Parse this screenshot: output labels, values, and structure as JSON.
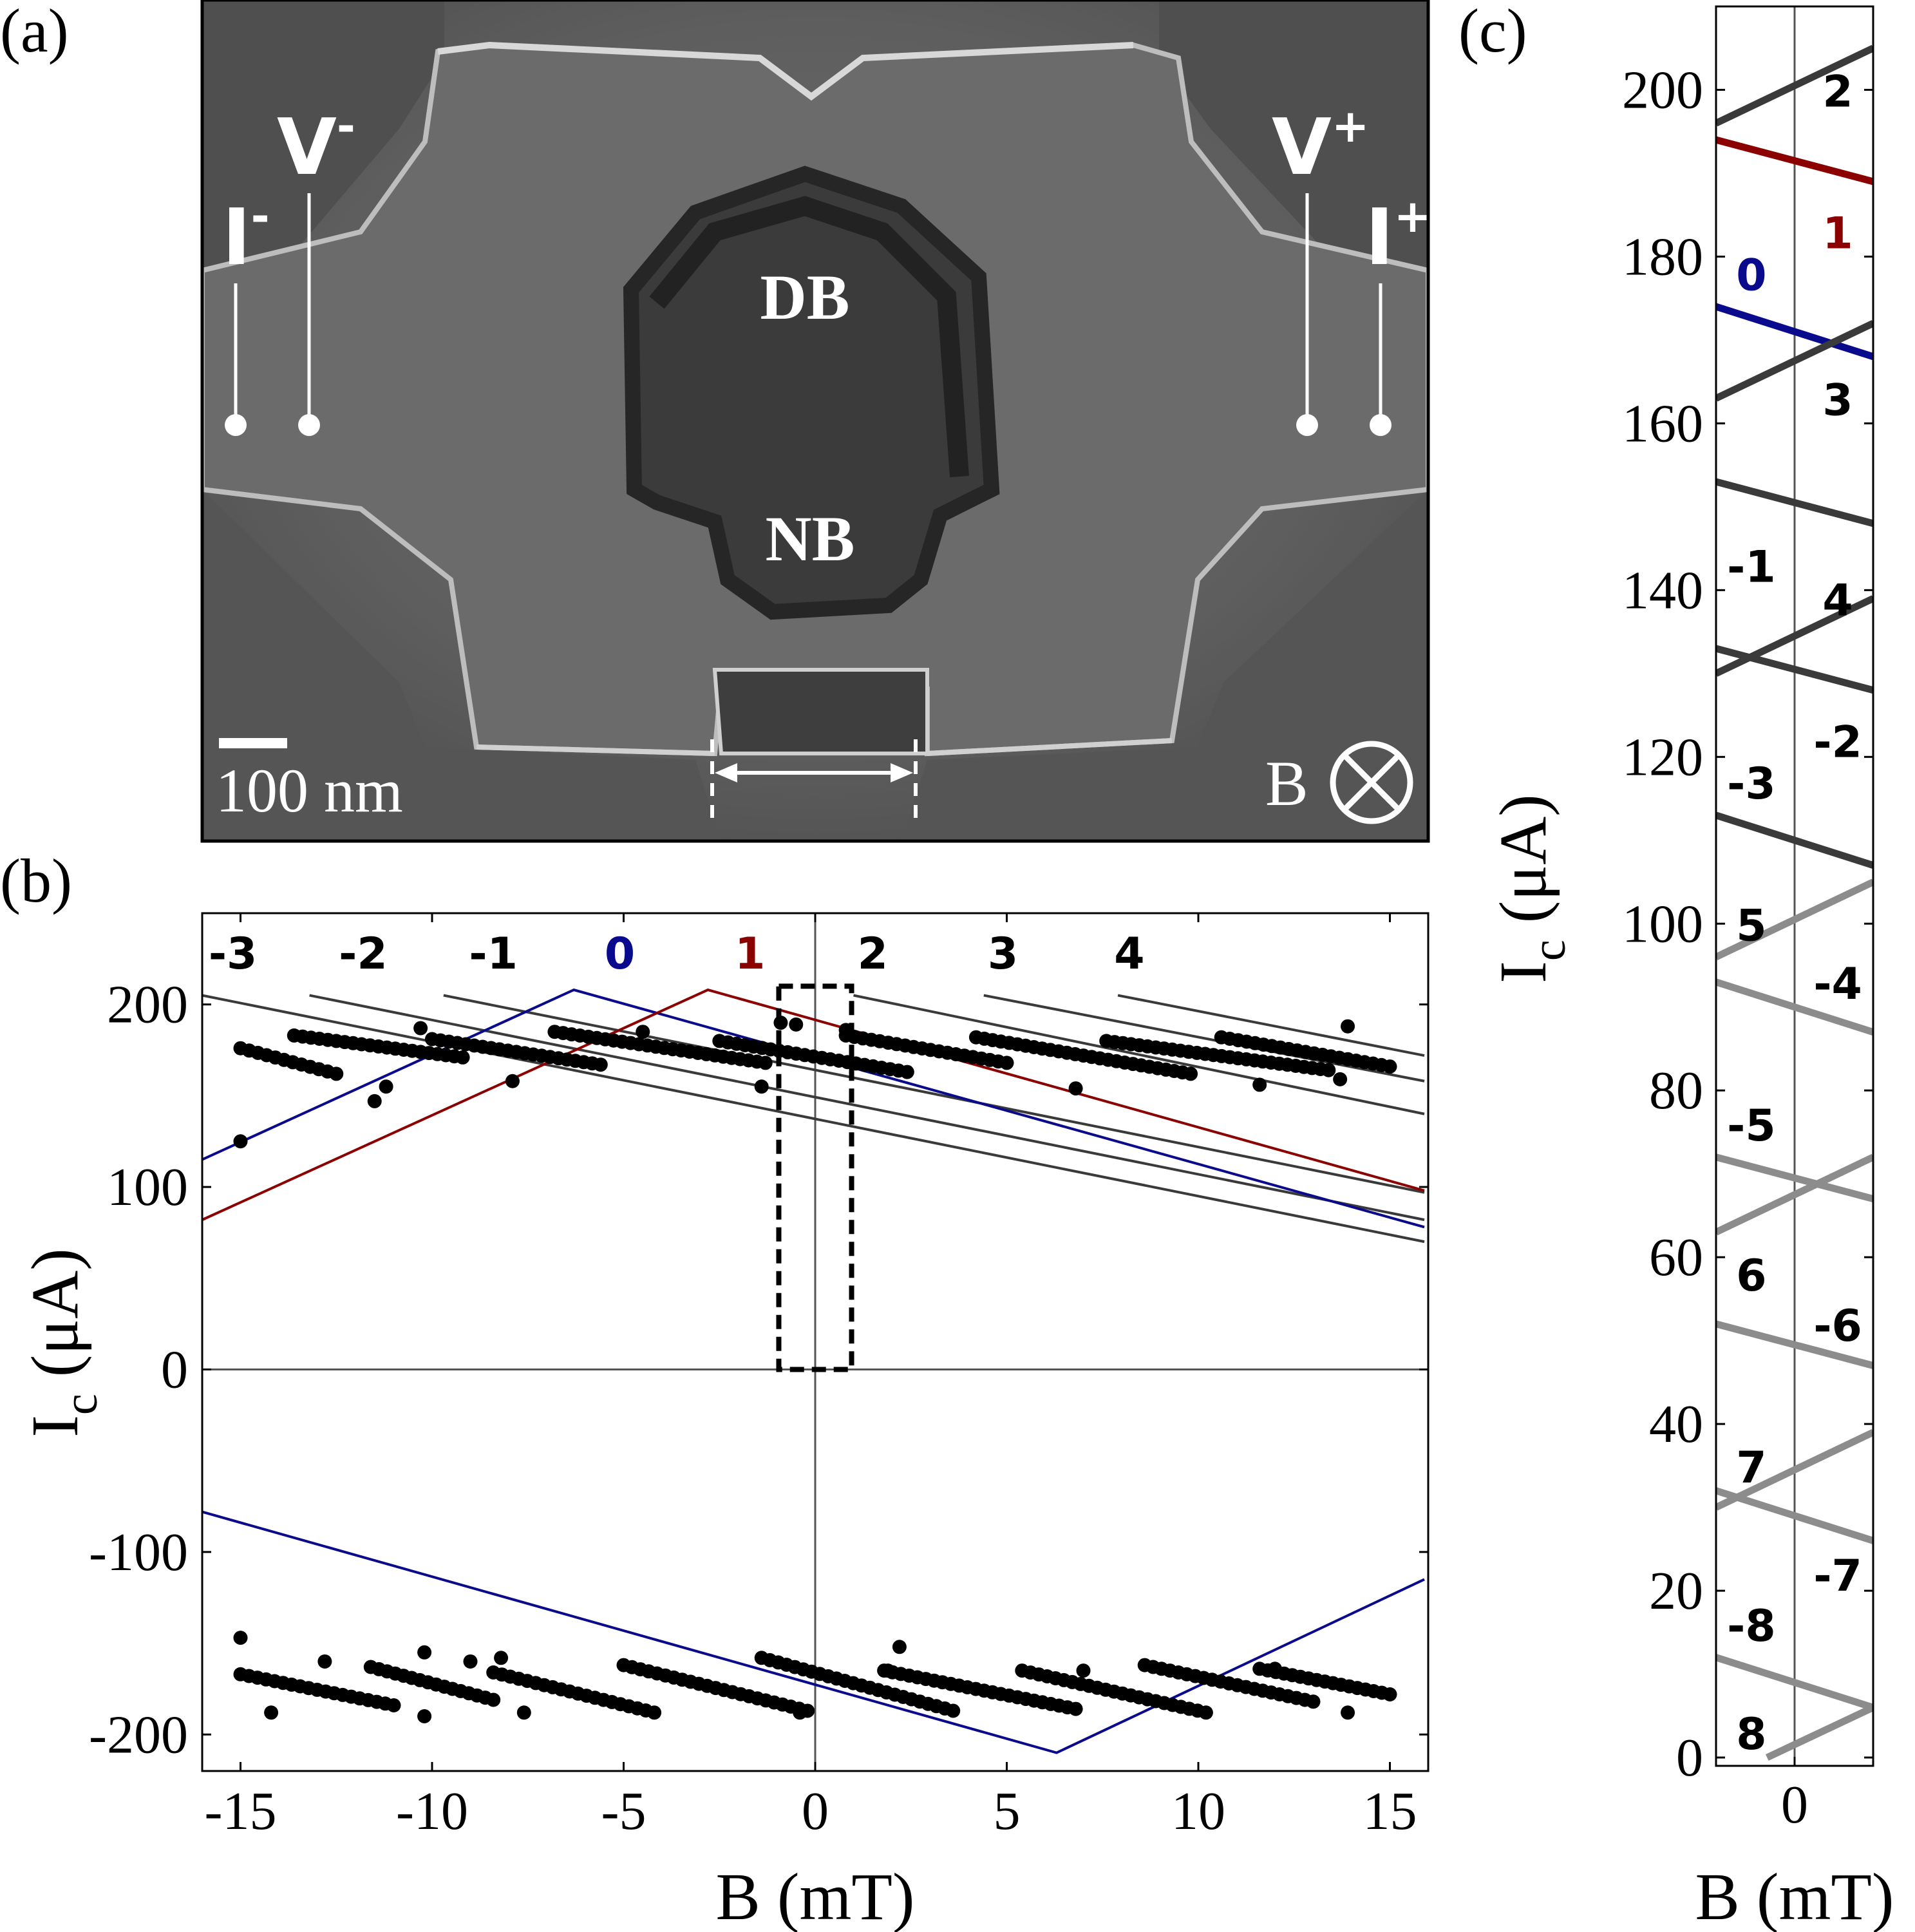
{
  "colors": {
    "black": "#000000",
    "dark_gray": "#3a3a3a",
    "light_gray": "#8c8c8c",
    "blue": "#0a0a8c",
    "red": "#8b0000"
  },
  "panel_a": {
    "label": "(a)",
    "v_minus": "V",
    "v_minus_sup": "-",
    "i_minus": "I",
    "i_minus_sup": "-",
    "v_plus": "V",
    "v_plus_sup": "+",
    "i_plus": "I",
    "i_plus_sup": "+",
    "db": "DB",
    "nb": "NB",
    "scale_bar": "100 nm",
    "field": "B",
    "field_icon": "circle-cross-icon"
  },
  "panel_b": {
    "label": "(b)",
    "xlabel": "B (mT)",
    "ylabel_main": "I",
    "ylabel_sub": "c",
    "ylabel_unit": " (μA)",
    "xticks": [
      "-15",
      "-10",
      "-5",
      "0",
      "5",
      "10",
      "15"
    ],
    "yticks": [
      "200",
      "100",
      "0",
      "-100",
      "-200"
    ]
  },
  "panel_c": {
    "label": "(c)",
    "xlabel": "B (mT)",
    "ylabel_main": "I",
    "ylabel_sub": "c",
    "ylabel_unit": " (μA)",
    "xticks": [
      "0"
    ],
    "yticks": [
      "200",
      "180",
      "160",
      "140",
      "120",
      "100",
      "80",
      "60",
      "40",
      "20",
      "0"
    ]
  },
  "chart_data": [
    {
      "type": "scatter",
      "panel": "b",
      "xlabel": "B (mT)",
      "ylabel": "Ic (μA)",
      "xlim": [
        -16,
        16
      ],
      "ylim": [
        -220,
        250
      ],
      "xticks": [
        -15,
        -10,
        -5,
        0,
        5,
        10,
        15
      ],
      "yticks": [
        -200,
        -100,
        0,
        100,
        200
      ],
      "fit_lines": [
        {
          "n": "-3",
          "color": "dark_gray",
          "x": [
            -16,
            15.9
          ],
          "y": [
            205,
            70
          ]
        },
        {
          "n": "-2",
          "color": "dark_gray",
          "x": [
            -13.2,
            15.9
          ],
          "y": [
            205,
            82
          ]
        },
        {
          "n": "-1",
          "color": "dark_gray",
          "x": [
            -9.7,
            15.9
          ],
          "y": [
            205,
            97
          ]
        },
        {
          "n": "0",
          "color": "blue",
          "x": [
            -16,
            -6.3,
            15.9
          ],
          "y": [
            115,
            208,
            78
          ]
        },
        {
          "n": "1",
          "color": "red",
          "x": [
            -16,
            -2.8,
            15.9
          ],
          "y": [
            82,
            208,
            98
          ]
        },
        {
          "n": "2",
          "color": "dark_gray",
          "x": [
            1.0,
            15.9
          ],
          "y": [
            205,
            140
          ]
        },
        {
          "n": "3",
          "color": "dark_gray",
          "x": [
            4.4,
            15.9
          ],
          "y": [
            205,
            158
          ]
        },
        {
          "n": "4",
          "color": "dark_gray",
          "x": [
            7.9,
            15.9
          ],
          "y": [
            205,
            172
          ]
        },
        {
          "n": "0",
          "color": "blue",
          "x": [
            -16,
            6.3,
            15.9
          ],
          "y": [
            -78,
            -210,
            -115
          ]
        }
      ],
      "branch_labels": [
        {
          "text": "-3",
          "x": -15.2,
          "color": "black"
        },
        {
          "text": "-2",
          "x": -11.8,
          "color": "black"
        },
        {
          "text": "-1",
          "x": -8.4,
          "color": "black"
        },
        {
          "text": "0",
          "x": -5.1,
          "color": "blue"
        },
        {
          "text": "1",
          "x": -1.7,
          "color": "red"
        },
        {
          "text": "2",
          "x": 1.5,
          "color": "black"
        },
        {
          "text": "3",
          "x": 4.9,
          "color": "black"
        },
        {
          "text": "4",
          "x": 8.2,
          "color": "black"
        }
      ],
      "data_segments_positive": [
        {
          "x": [
            -15.0,
            -12.5
          ],
          "y": [
            176,
            162
          ]
        },
        {
          "x": [
            -13.6,
            -9.2
          ],
          "y": [
            183,
            171
          ]
        },
        {
          "x": [
            -10.0,
            -5.6
          ],
          "y": [
            181,
            167
          ]
        },
        {
          "x": [
            -6.8,
            -1.3
          ],
          "y": [
            185,
            168
          ]
        },
        {
          "x": [
            -2.5,
            2.4
          ],
          "y": [
            180,
            163
          ]
        },
        {
          "x": [
            0.8,
            5.0
          ],
          "y": [
            183,
            168
          ]
        },
        {
          "x": [
            4.2,
            9.8
          ],
          "y": [
            182,
            162
          ]
        },
        {
          "x": [
            7.6,
            13.4
          ],
          "y": [
            180,
            164
          ]
        },
        {
          "x": [
            10.6,
            15.0
          ],
          "y": [
            182,
            166
          ]
        }
      ],
      "outliers_positive": [
        {
          "x": -15.0,
          "y": 125
        },
        {
          "x": -11.5,
          "y": 147
        },
        {
          "x": -11.2,
          "y": 155
        },
        {
          "x": -7.9,
          "y": 158
        },
        {
          "x": -10.3,
          "y": 187
        },
        {
          "x": -4.5,
          "y": 185
        },
        {
          "x": -1.4,
          "y": 155
        },
        {
          "x": -0.9,
          "y": 190
        },
        {
          "x": -0.5,
          "y": 189
        },
        {
          "x": 0.8,
          "y": 186
        },
        {
          "x": 6.8,
          "y": 154
        },
        {
          "x": 13.9,
          "y": 188
        },
        {
          "x": 13.7,
          "y": 159
        },
        {
          "x": 11.6,
          "y": 156
        }
      ],
      "data_segments_negative": [
        {
          "x": [
            -15.0,
            -11.0
          ],
          "y": [
            -167,
            -184
          ]
        },
        {
          "x": [
            -11.6,
            -8.4
          ],
          "y": [
            -163,
            -181
          ]
        },
        {
          "x": [
            -8.4,
            -4.2
          ],
          "y": [
            -166,
            -188
          ]
        },
        {
          "x": [
            -5.0,
            -0.2
          ],
          "y": [
            -162,
            -187
          ]
        },
        {
          "x": [
            -1.4,
            3.6
          ],
          "y": [
            -158,
            -187
          ]
        },
        {
          "x": [
            1.8,
            6.8
          ],
          "y": [
            -165,
            -186
          ]
        },
        {
          "x": [
            5.4,
            10.2
          ],
          "y": [
            -165,
            -188
          ]
        },
        {
          "x": [
            8.6,
            13.0
          ],
          "y": [
            -162,
            -182
          ]
        },
        {
          "x": [
            11.6,
            15.0
          ],
          "y": [
            -164,
            -178
          ]
        }
      ],
      "outliers_negative": [
        {
          "x": -15.0,
          "y": -147
        },
        {
          "x": -14.2,
          "y": -188
        },
        {
          "x": -12.8,
          "y": -160
        },
        {
          "x": -10.2,
          "y": -190
        },
        {
          "x": -10.2,
          "y": -155
        },
        {
          "x": -9.0,
          "y": -160
        },
        {
          "x": -8.2,
          "y": -158
        },
        {
          "x": -7.6,
          "y": -188
        },
        {
          "x": -0.4,
          "y": -188
        },
        {
          "x": 2.2,
          "y": -152
        },
        {
          "x": 1.9,
          "y": -165
        },
        {
          "x": 13.9,
          "y": -188
        },
        {
          "x": 12.0,
          "y": -164
        },
        {
          "x": 7.0,
          "y": -165
        }
      ]
    },
    {
      "type": "line",
      "panel": "c",
      "xlabel": "B (mT)",
      "ylabel": "Ic (μA)",
      "xlim": [
        -1,
        1
      ],
      "ylim": [
        -1,
        210
      ],
      "xticks": [
        0
      ],
      "yticks": [
        0,
        20,
        40,
        60,
        80,
        100,
        120,
        140,
        160,
        180,
        200
      ],
      "lines": [
        {
          "n": "2",
          "color": "dark_gray",
          "y": [
            196,
            205
          ]
        },
        {
          "n": "1",
          "color": "red",
          "y": [
            194,
            189
          ]
        },
        {
          "n": "0",
          "color": "blue",
          "y": [
            174,
            168
          ]
        },
        {
          "n": "3",
          "color": "dark_gray",
          "y": [
            163,
            172
          ]
        },
        {
          "n": "-1",
          "color": "dark_gray",
          "y": [
            153,
            148
          ]
        },
        {
          "n": "4",
          "color": "dark_gray",
          "y": [
            130,
            139
          ]
        },
        {
          "n": "-2",
          "color": "dark_gray",
          "y": [
            133,
            128
          ]
        },
        {
          "n": "-3",
          "color": "dark_gray",
          "y": [
            113,
            107
          ]
        },
        {
          "n": "5",
          "color": "light_gray",
          "y": [
            96,
            105
          ]
        },
        {
          "n": "-4",
          "color": "light_gray",
          "y": [
            93,
            87
          ]
        },
        {
          "n": "-5",
          "color": "light_gray",
          "y": [
            72,
            67
          ]
        },
        {
          "n": "6",
          "color": "light_gray",
          "y": [
            63,
            72
          ]
        },
        {
          "n": "-6",
          "color": "light_gray",
          "y": [
            52,
            47
          ]
        },
        {
          "n": "7",
          "color": "light_gray",
          "y": [
            30,
            39
          ]
        },
        {
          "n": "-7",
          "color": "light_gray",
          "y": [
            32,
            26
          ]
        },
        {
          "n": "-8",
          "color": "light_gray",
          "y": [
            12,
            6
          ]
        },
        {
          "n": "8",
          "color": "light_gray",
          "y": [
            0,
            6
          ],
          "x": [
            -0.35,
            1
          ]
        }
      ],
      "number_labels": [
        {
          "text": "2",
          "x": 0.55,
          "y": 200,
          "color": "black"
        },
        {
          "text": "1",
          "x": 0.55,
          "y": 183,
          "color": "red"
        },
        {
          "text": "0",
          "x": -0.55,
          "y": 178,
          "color": "blue"
        },
        {
          "text": "3",
          "x": 0.55,
          "y": 163,
          "color": "black"
        },
        {
          "text": "-1",
          "x": -0.55,
          "y": 143,
          "color": "black"
        },
        {
          "text": "4",
          "x": 0.55,
          "y": 139,
          "color": "black"
        },
        {
          "text": "-2",
          "x": 0.55,
          "y": 122,
          "color": "black"
        },
        {
          "text": "-3",
          "x": -0.55,
          "y": 117,
          "color": "black"
        },
        {
          "text": "5",
          "x": -0.55,
          "y": 100,
          "color": "black"
        },
        {
          "text": "-4",
          "x": 0.55,
          "y": 93,
          "color": "black"
        },
        {
          "text": "-5",
          "x": -0.55,
          "y": 76,
          "color": "black"
        },
        {
          "text": "6",
          "x": -0.55,
          "y": 58,
          "color": "black"
        },
        {
          "text": "-6",
          "x": 0.55,
          "y": 52,
          "color": "black"
        },
        {
          "text": "7",
          "x": -0.55,
          "y": 35,
          "color": "black"
        },
        {
          "text": "-7",
          "x": 0.55,
          "y": 22,
          "color": "black"
        },
        {
          "text": "-8",
          "x": -0.55,
          "y": 16,
          "color": "black"
        },
        {
          "text": "8",
          "x": -0.55,
          "y": 3,
          "color": "black"
        }
      ]
    }
  ]
}
